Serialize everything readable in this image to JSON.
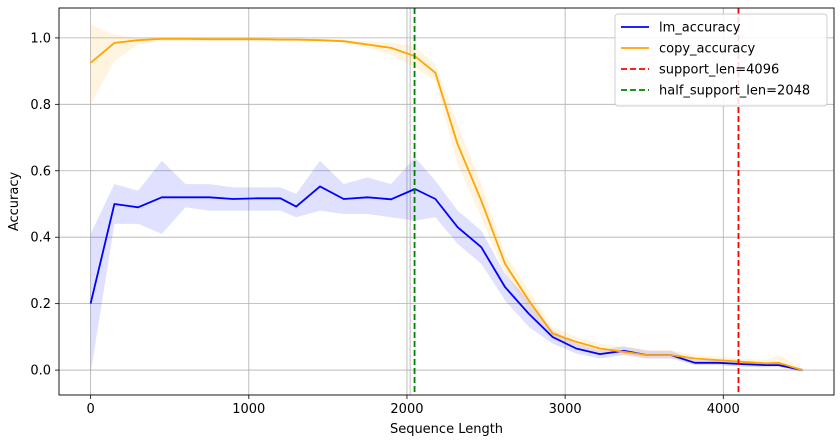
{
  "chart_data": {
    "type": "line",
    "title": "",
    "xlabel": "Sequence Length",
    "ylabel": "Accuracy",
    "xlim": [
      -200,
      4700
    ],
    "ylim": [
      -0.075,
      1.09
    ],
    "xticks": [
      0,
      1000,
      2000,
      3000,
      4000
    ],
    "yticks": [
      0.0,
      0.2,
      0.4,
      0.6,
      0.8,
      1.0
    ],
    "xtick_labels": [
      "0",
      "1000",
      "2000",
      "3000",
      "4000"
    ],
    "ytick_labels": [
      "0.0",
      "0.2",
      "0.4",
      "0.6",
      "0.8",
      "1.0"
    ],
    "grid": true,
    "legend_position": "top-right",
    "x": [
      0,
      150,
      300,
      450,
      600,
      750,
      900,
      1050,
      1200,
      1300,
      1450,
      1600,
      1750,
      1900,
      2050,
      2180,
      2320,
      2470,
      2620,
      2770,
      2920,
      3070,
      3220,
      3370,
      3520,
      3670,
      3820,
      3970,
      4120,
      4270,
      4350,
      4500
    ],
    "series": [
      {
        "name": "lm_accuracy",
        "color": "#0000ff",
        "values": [
          0.2,
          0.5,
          0.49,
          0.52,
          0.52,
          0.52,
          0.515,
          0.517,
          0.517,
          0.492,
          0.553,
          0.515,
          0.52,
          0.514,
          0.545,
          0.515,
          0.43,
          0.37,
          0.25,
          0.17,
          0.1,
          0.065,
          0.048,
          0.058,
          0.045,
          0.045,
          0.022,
          0.022,
          0.018,
          0.015,
          0.015,
          0.0
        ],
        "lower": [
          -0.01,
          0.44,
          0.44,
          0.41,
          0.49,
          0.48,
          0.48,
          0.48,
          0.48,
          0.46,
          0.48,
          0.47,
          0.47,
          0.46,
          0.45,
          0.46,
          0.38,
          0.32,
          0.21,
          0.13,
          0.08,
          0.05,
          0.035,
          0.045,
          0.035,
          0.035,
          0.015,
          0.015,
          0.01,
          0.008,
          0.01,
          -0.005
        ],
        "upper": [
          0.41,
          0.56,
          0.54,
          0.63,
          0.56,
          0.56,
          0.55,
          0.55,
          0.55,
          0.53,
          0.63,
          0.56,
          0.58,
          0.56,
          0.64,
          0.57,
          0.48,
          0.42,
          0.29,
          0.21,
          0.12,
          0.08,
          0.06,
          0.072,
          0.058,
          0.058,
          0.03,
          0.03,
          0.026,
          0.022,
          0.02,
          0.005
        ]
      },
      {
        "name": "copy_accuracy",
        "color": "#ffa500",
        "values": [
          0.925,
          0.985,
          0.993,
          0.997,
          0.997,
          0.996,
          0.996,
          0.996,
          0.995,
          0.995,
          0.993,
          0.99,
          0.98,
          0.97,
          0.945,
          0.895,
          0.68,
          0.51,
          0.32,
          0.21,
          0.11,
          0.085,
          0.065,
          0.055,
          0.045,
          0.045,
          0.035,
          0.03,
          0.025,
          0.02,
          0.022,
          0.0
        ],
        "lower": [
          0.8,
          0.93,
          0.98,
          0.99,
          0.99,
          0.99,
          0.99,
          0.99,
          0.99,
          0.99,
          0.99,
          0.985,
          0.97,
          0.95,
          0.91,
          0.87,
          0.62,
          0.46,
          0.29,
          0.18,
          0.09,
          0.07,
          0.05,
          0.045,
          0.035,
          0.035,
          0.025,
          0.02,
          0.015,
          0.012,
          0.012,
          -0.005
        ],
        "upper": [
          1.04,
          1.01,
          1.0,
          1.0,
          1.0,
          1.0,
          1.0,
          1.0,
          1.0,
          1.0,
          0.998,
          0.995,
          0.99,
          0.985,
          0.975,
          0.92,
          0.74,
          0.56,
          0.35,
          0.24,
          0.13,
          0.1,
          0.08,
          0.07,
          0.06,
          0.06,
          0.045,
          0.04,
          0.035,
          0.03,
          0.045,
          0.005
        ]
      }
    ],
    "vlines": [
      {
        "name": "support_len=4096",
        "x": 4096,
        "color": "#ff0000"
      },
      {
        "name": "half_support_len=2048",
        "x": 2048,
        "color": "#008000"
      }
    ],
    "extra_vertical_gridline_x": 2020
  }
}
